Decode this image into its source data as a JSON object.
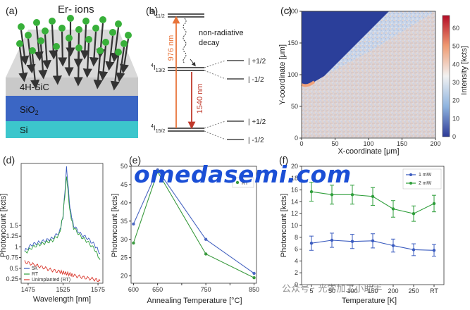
{
  "panels": {
    "a": {
      "label": "(a)",
      "ions_label": "Er- ions",
      "layers": [
        "4H-SiC",
        "SiO",
        "2",
        "Si"
      ],
      "colors": {
        "ion": "#38b03a",
        "arrow": "#333333",
        "sic": "#c9c9c9",
        "sio2": "#3b66c4",
        "si": "#3cc6cc"
      }
    },
    "b": {
      "label": "(b)",
      "levels": {
        "top_main": "4",
        "top_sub": "I",
        "top_sub2": "11/2",
        "mid_main": "4",
        "mid_sub": "I",
        "mid_sub2": "13/2",
        "bot_main": "4",
        "bot_sub": "I",
        "bot_sub2": "15/2"
      },
      "transitions": {
        "pump": "976 nm",
        "emission": "1540 nm",
        "nonrad": [
          "non-radiative",
          "decay"
        ]
      },
      "splits": [
        "+1/2",
        "-1/2",
        "+1/2",
        "-1/2"
      ],
      "colors": {
        "pump": "#e8743a",
        "emission": "#c0392b"
      }
    },
    "c": {
      "label": "(c)",
      "xlabel": "X-coordinate [μm]",
      "ylabel": "Y-coordinate [μm]",
      "cbar_label": "Intensity [kcts]",
      "xticks": [
        "0",
        "50",
        "100",
        "150",
        "200"
      ],
      "yticks": [
        "0",
        "50",
        "100",
        "150",
        "200"
      ],
      "cbar_ticks": [
        "0",
        "10",
        "20",
        "30",
        "40",
        "50",
        "60"
      ]
    },
    "d": {
      "label": "(d)",
      "ylabel": "Photoncount [kcts]",
      "xlabel": "Wavelength [nm]",
      "xticks": [
        "1475",
        "1525",
        "1575"
      ],
      "yticks": [
        "0.25",
        "0.5",
        "0.75",
        "1",
        "1.25",
        "1.5"
      ],
      "legend": [
        "5K",
        "RT",
        "Unimplanted (RT)"
      ],
      "colors": {
        "5K": "#3a5bbf",
        "RT": "#2e9e3a",
        "Unimplanted (RT)": "#d9362b"
      }
    },
    "e": {
      "label": "(e)",
      "ylabel": "Photoncount [kcts]",
      "xlabel": "Annealing Temperature [°C]",
      "legend": [
        "RT"
      ],
      "xticks": [
        "600",
        "650",
        "700",
        "750",
        "800",
        "850"
      ],
      "yticks": [
        "20",
        "25",
        "30",
        "35",
        "40",
        "45",
        "50"
      ]
    },
    "f": {
      "label": "(f)",
      "ylabel": "Photoncount [kcts]",
      "xlabel": "Temperature [K]",
      "legend": [
        "1 mW",
        "2 mW"
      ],
      "xticks": [
        "5",
        "50",
        "100",
        "150",
        "200",
        "250",
        "RT"
      ],
      "yticks": [
        "0",
        "2",
        "4",
        "6",
        "8",
        "10",
        "12",
        "14",
        "16",
        "18",
        "20"
      ]
    }
  },
  "watermark": "omedasemi.com",
  "watermark2": "公众号 · 光学加工小助手",
  "chart_data": [
    {
      "type": "line",
      "panel": "e",
      "xlabel": "Annealing Temperature [°C]",
      "ylabel": "Photoncount [kcts]",
      "x": [
        600,
        650,
        750,
        850
      ],
      "series": [
        {
          "values": [
            34.2,
            49.0,
            30.0,
            20.7
          ]
        },
        {
          "name": "RT",
          "values": [
            29.0,
            48.5,
            26.0,
            19.5
          ]
        }
      ],
      "xlim": [
        595,
        855
      ],
      "ylim": [
        18,
        50
      ],
      "colors": [
        "#4a67c2",
        "#3a9a3e"
      ]
    },
    {
      "type": "line",
      "panel": "f",
      "xlabel": "Temperature [K]",
      "ylabel": "Photoncount [kcts]",
      "categories": [
        "5",
        "50",
        "100",
        "150",
        "200",
        "250",
        "RT"
      ],
      "series": [
        {
          "name": "1 mW",
          "values": [
            7.0,
            7.5,
            7.3,
            7.4,
            6.6,
            5.9,
            5.8
          ],
          "errors": [
            1.2,
            1.2,
            1.2,
            1.2,
            1.1,
            1.0,
            1.0
          ]
        },
        {
          "name": "2 mW",
          "values": [
            15.7,
            15.2,
            15.2,
            14.9,
            12.8,
            12.0,
            13.7
          ],
          "errors": [
            1.6,
            1.6,
            1.6,
            1.5,
            1.4,
            1.3,
            1.4
          ]
        }
      ],
      "ylim": [
        0,
        20
      ],
      "legend": "top-right",
      "colors": [
        "#3a5bbf",
        "#2e9e3a"
      ]
    },
    {
      "type": "line",
      "panel": "d",
      "xlabel": "Wavelength [nm]",
      "ylabel": "Photoncount [kcts]",
      "x": [
        1470,
        1480,
        1490,
        1500,
        1510,
        1520,
        1525,
        1530,
        1535,
        1540,
        1550,
        1560,
        1570,
        1578
      ],
      "series": [
        {
          "name": "5K",
          "values": [
            0.9,
            1.05,
            1.1,
            1.15,
            1.2,
            1.35,
            1.7,
            2.85,
            1.9,
            1.5,
            1.3,
            1.2,
            1.05,
            0.85
          ]
        },
        {
          "name": "RT",
          "values": [
            0.85,
            0.98,
            1.05,
            1.1,
            1.15,
            1.3,
            1.75,
            2.65,
            1.8,
            1.45,
            1.25,
            1.12,
            0.95,
            0.7
          ]
        },
        {
          "name": "Unimplanted (RT)",
          "values": [
            0.65,
            0.6,
            0.55,
            0.5,
            0.45,
            0.42,
            0.4,
            0.38,
            0.36,
            0.33,
            0.3,
            0.27,
            0.24,
            0.2
          ]
        }
      ],
      "xlim": [
        1465,
        1582
      ],
      "ylim": [
        0.15,
        2.95
      ]
    }
  ]
}
